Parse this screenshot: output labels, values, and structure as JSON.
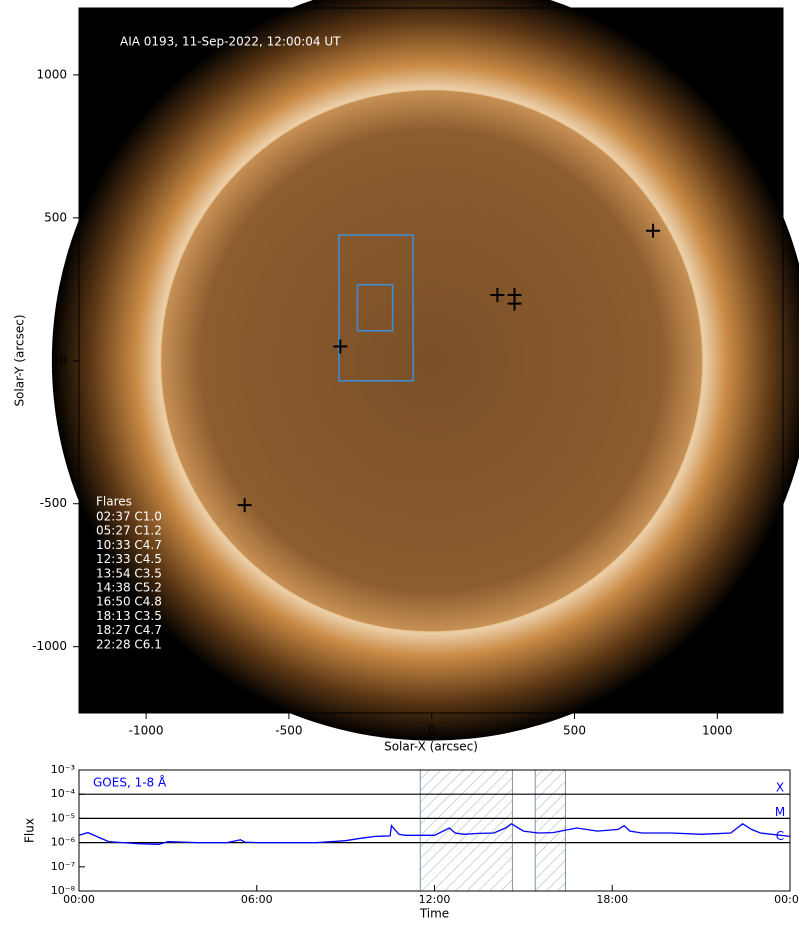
{
  "chart_data": [
    {
      "type": "image",
      "annotation": "AIA 0193, 11-Sep-2022, 12:00:04 UT",
      "xlabel": "Solar-X (arcsec)",
      "ylabel": "Solar-Y (arcsec)",
      "xlim": [
        -1235,
        1230
      ],
      "ylim": [
        -1232,
        1234
      ],
      "xticks": [
        -1000,
        -500,
        0,
        500,
        1000
      ],
      "yticks": [
        -1000,
        -500,
        0,
        500,
        1000
      ],
      "markers": {
        "color": "#000000",
        "x": [
          -320,
          230,
          290,
          290,
          775,
          -655
        ],
        "y": [
          50,
          230,
          230,
          200,
          455,
          -505
        ]
      },
      "boxes": {
        "color": "#3d8fd8",
        "x0": [
          -325,
          -260
        ],
        "x1": [
          -65,
          -137
        ],
        "y0": [
          -70,
          105
        ],
        "y1": [
          440,
          266
        ]
      },
      "flare_list": {
        "title": "Flares",
        "entries": [
          "02:37 C1.0",
          "05:27 C1.2",
          "10:33 C4.7",
          "12:33 C4.5",
          "13:54 C3.5",
          "14:38 C5.2",
          "16:50 C4.8",
          "18:13 C3.5",
          "18:27 C4.7",
          "22:28 C6.1"
        ]
      }
    },
    {
      "type": "line",
      "legend": "GOES, 1-8 Å",
      "xlabel": "Time",
      "ylabel": "Flux",
      "log_y": true,
      "xlim": [
        0,
        24
      ],
      "ylim": [
        1e-08,
        0.001
      ],
      "xticks": [
        {
          "value": 0,
          "label": "00:00"
        },
        {
          "value": 6,
          "label": "06:00"
        },
        {
          "value": 12,
          "label": "12:00"
        },
        {
          "value": 18,
          "label": "18:00"
        },
        {
          "value": 24,
          "label": "00:00"
        }
      ],
      "yticks": [
        {
          "value": 1e-08,
          "label": "10⁻⁸"
        },
        {
          "value": 1e-07,
          "label": "10⁻⁷"
        },
        {
          "value": 1e-06,
          "label": "10⁻⁶"
        },
        {
          "value": 1e-05,
          "label": "10⁻⁵"
        },
        {
          "value": 0.0001,
          "label": "10⁻⁴"
        },
        {
          "value": 0.001,
          "label": "10⁻³"
        }
      ],
      "class_levels": [
        {
          "value": 0.0001,
          "label": "X"
        },
        {
          "value": 1e-05,
          "label": "M"
        },
        {
          "value": 1e-06,
          "label": "C"
        }
      ],
      "shaded_intervals": [
        [
          11.52,
          14.63
        ],
        [
          15.4,
          16.42
        ]
      ],
      "series": [
        {
          "color": "#0000ff",
          "x": [
            0,
            0.3,
            1,
            2,
            2.7,
            3,
            4,
            5,
            5.45,
            5.6,
            6,
            7,
            8,
            9,
            9.5,
            10,
            10.5,
            10.55,
            10.8,
            11,
            12,
            12.5,
            12.7,
            13,
            13.5,
            14,
            14.4,
            14.6,
            15,
            15.5,
            16,
            16.8,
            17.5,
            18.2,
            18.4,
            18.6,
            19,
            20,
            21,
            22,
            22.4,
            22.7,
            23,
            24
          ],
          "values": [
            2e-06,
            2.6e-06,
            1.1e-06,
            9e-07,
            8.5e-07,
            1.1e-06,
            1e-06,
            1e-06,
            1.3e-06,
            1.05e-06,
            1e-06,
            1e-06,
            1e-06,
            1.2e-06,
            1.5e-06,
            1.8e-06,
            1.9e-06,
            5e-06,
            2.2e-06,
            2e-06,
            2e-06,
            4e-06,
            2.5e-06,
            2.2e-06,
            2.4e-06,
            2.5e-06,
            4e-06,
            6e-06,
            3e-06,
            2.5e-06,
            2.6e-06,
            4e-06,
            3e-06,
            3.5e-06,
            5e-06,
            3e-06,
            2.5e-06,
            2.5e-06,
            2.2e-06,
            2.5e-06,
            6e-06,
            3.5e-06,
            2.5e-06,
            1.8e-06
          ]
        }
      ]
    }
  ]
}
